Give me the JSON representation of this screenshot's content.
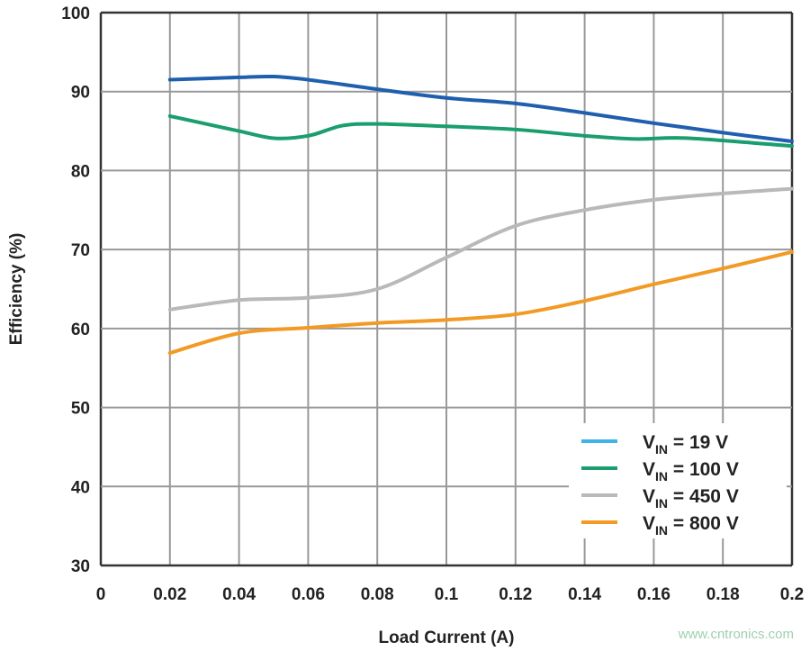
{
  "chart_data": {
    "type": "line",
    "title": "",
    "xlabel": "Load Current (A)",
    "ylabel": "Efficiency (%)",
    "xlim": [
      0,
      0.2
    ],
    "ylim": [
      30,
      100
    ],
    "xticks": [
      "0",
      "0.02",
      "0.04",
      "0.06",
      "0.08",
      "0.1",
      "0.12",
      "0.14",
      "0.16",
      "0.18",
      "0.2"
    ],
    "yticks": [
      "30",
      "40",
      "50",
      "60",
      "70",
      "80",
      "90",
      "100"
    ],
    "grid": true,
    "legend_position": "bottom-right",
    "series": [
      {
        "name": "VIN = 19 V",
        "name_main": "V",
        "name_sub": "IN",
        "name_rest": " = 19 V",
        "legend_color": "#3fb4e6",
        "color": "#1f5fae",
        "x": [
          0.02,
          0.04,
          0.05,
          0.06,
          0.08,
          0.1,
          0.12,
          0.14,
          0.16,
          0.18,
          0.2
        ],
        "y": [
          91.5,
          91.8,
          91.9,
          91.5,
          90.3,
          89.2,
          88.5,
          87.3,
          86.0,
          84.8,
          83.7
        ]
      },
      {
        "name": "VIN = 100 V",
        "name_main": "V",
        "name_sub": "IN",
        "name_rest": " = 100 V",
        "legend_color": "#1a9e6e",
        "color": "#1a9e6e",
        "x": [
          0.02,
          0.04,
          0.05,
          0.06,
          0.07,
          0.08,
          0.1,
          0.12,
          0.14,
          0.155,
          0.17,
          0.2
        ],
        "y": [
          86.9,
          85.0,
          84.1,
          84.4,
          85.7,
          85.9,
          85.6,
          85.2,
          84.4,
          84.0,
          84.1,
          83.1
        ]
      },
      {
        "name": "VIN = 450 V",
        "name_main": "V",
        "name_sub": "IN",
        "name_rest": " = 450 V",
        "legend_color": "#b9b9b9",
        "color": "#b9b9b9",
        "x": [
          0.02,
          0.04,
          0.06,
          0.08,
          0.1,
          0.12,
          0.14,
          0.16,
          0.18,
          0.2
        ],
        "y": [
          62.4,
          63.6,
          63.9,
          65.0,
          69.0,
          73.0,
          75.0,
          76.3,
          77.1,
          77.7
        ]
      },
      {
        "name": "VIN = 800 V",
        "name_main": "V",
        "name_sub": "IN",
        "name_rest": " = 800 V",
        "legend_color": "#f29a24",
        "color": "#f29a24",
        "x": [
          0.02,
          0.04,
          0.06,
          0.08,
          0.1,
          0.12,
          0.14,
          0.16,
          0.18,
          0.2
        ],
        "y": [
          56.9,
          59.4,
          60.1,
          60.7,
          61.1,
          61.8,
          63.5,
          65.6,
          67.6,
          69.7
        ]
      }
    ]
  },
  "watermark": "www.cntronics.com"
}
